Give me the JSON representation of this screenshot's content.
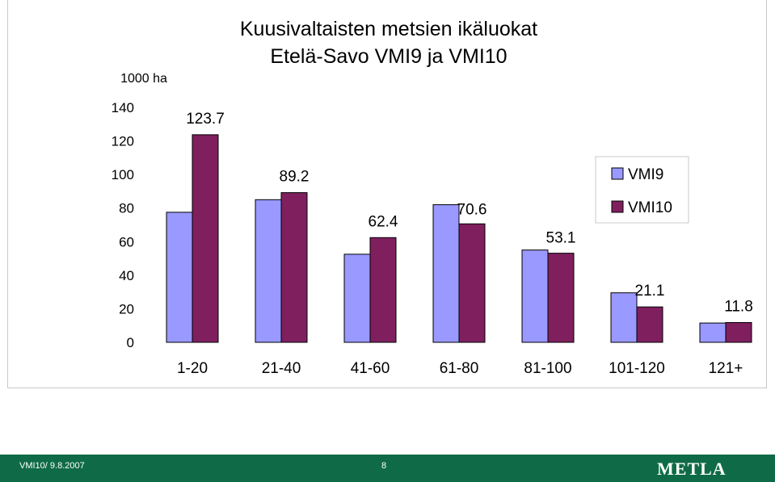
{
  "chart_data": {
    "type": "bar",
    "title": "Kuusivaltaisten metsien ikäluokat",
    "subtitle": "Etelä-Savo VMI9 ja VMI10",
    "ylabel": "1000 ha",
    "ylim": [
      0,
      140
    ],
    "yticks": [
      "0",
      "20",
      "40",
      "60",
      "80",
      "100",
      "120",
      "140"
    ],
    "ytick_values": [
      0,
      20,
      40,
      60,
      80,
      100,
      120,
      140
    ],
    "categories": [
      "1-20",
      "21-40",
      "41-60",
      "61-80",
      "81-100",
      "101-120",
      "121+"
    ],
    "series": [
      {
        "name": "VMI9",
        "values": [
          77.5,
          85,
          52.5,
          82,
          55,
          29.5,
          11.5
        ],
        "color": "#9999ff"
      },
      {
        "name": "VMI10",
        "values": [
          123.7,
          89.2,
          62.4,
          70.6,
          53.1,
          21.1,
          11.8
        ],
        "color": "#7f1f5e"
      }
    ],
    "data_labels": [
      "123.7",
      "89.2",
      "62.4",
      "70.6",
      "53.1",
      "21.1",
      "11.8"
    ],
    "grid": false,
    "legend_position": "right"
  },
  "footer": {
    "left_text": "VMI10/ 9.8.2007",
    "page": "8",
    "logo": "METLA",
    "color": "#0f6b47"
  }
}
